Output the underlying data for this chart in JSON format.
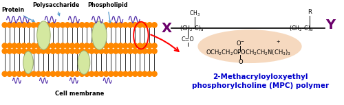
{
  "bg_color": "#ffffff",
  "label_protein": "Protein",
  "label_polysaccharide": "Polysaccharide",
  "label_phospholipid": "Phospholipid",
  "label_cell_membrane": "Cell membrane",
  "label_name_line1": "2-Methacryloyloxyethyl",
  "label_name_line2": "phosphorylcholine (MPC) polymer",
  "x_label": "X",
  "y_label": "Y",
  "polymer_color": "#6b006b",
  "arrow_color": "#5599cc",
  "red_arrow_color": "#ff0000",
  "text_color": "#000000",
  "blue_label_color": "#0000cc",
  "highlight_color": "#f5d5b8",
  "membrane_orange": "#ff8800",
  "membrane_lipid": "#111111",
  "protein_color": "#d4e8a0",
  "protein_edge": "#9aad70",
  "polysaccharide_color": "#5533aa"
}
